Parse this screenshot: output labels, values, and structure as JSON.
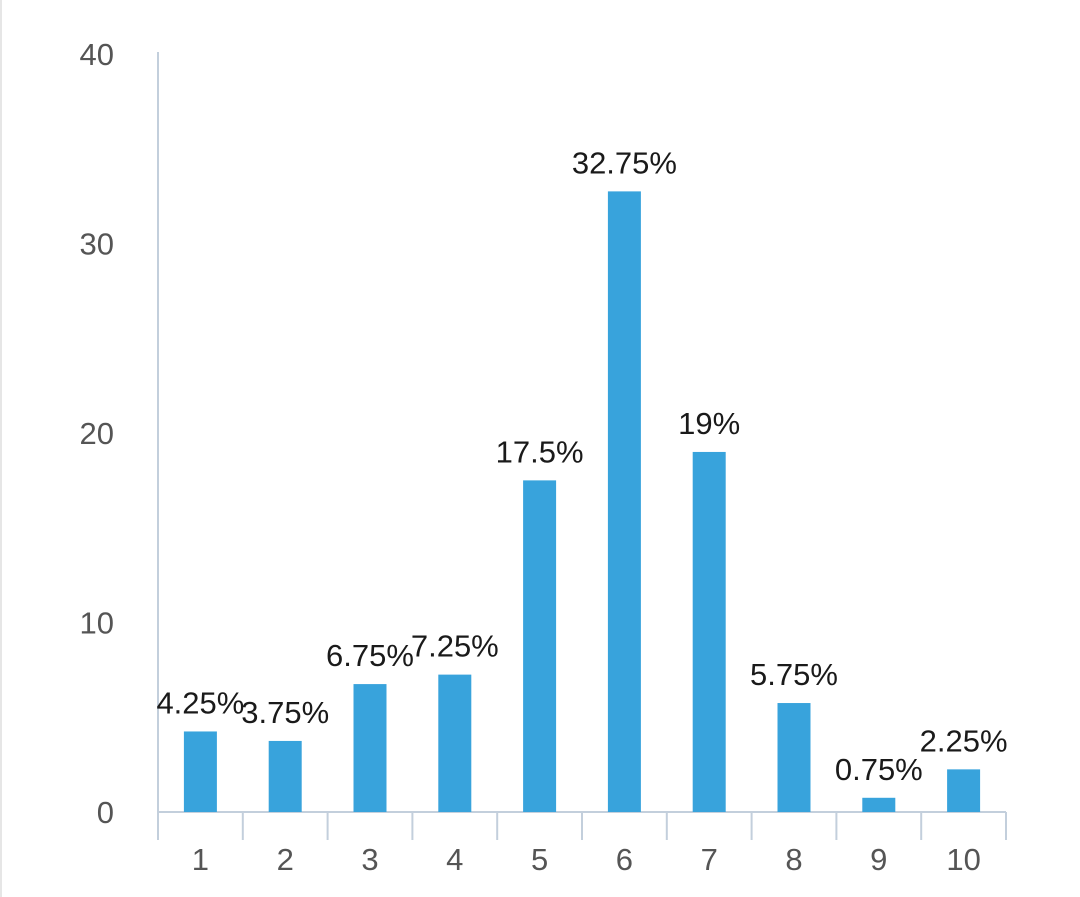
{
  "chart_data": {
    "type": "bar",
    "categories": [
      "1",
      "2",
      "3",
      "4",
      "5",
      "6",
      "7",
      "8",
      "9",
      "10"
    ],
    "values": [
      4.25,
      3.75,
      6.75,
      7.25,
      17.5,
      32.75,
      19,
      5.75,
      0.75,
      2.25
    ],
    "data_labels": [
      "4.25%",
      "3.75%",
      "6.75%",
      "7.25%",
      "17.5%",
      "32.75%",
      "19%",
      "5.75%",
      "0.75%",
      "2.25%"
    ],
    "y_ticks": [
      "0",
      "10",
      "20",
      "30",
      "40"
    ],
    "ylim": [
      0,
      40
    ],
    "grid": false,
    "legend": "none",
    "colors": {
      "bar": "#38a3dc",
      "axis": "#c3cfdc",
      "tick_text": "#555555",
      "label_text": "#1a1a1a"
    }
  }
}
